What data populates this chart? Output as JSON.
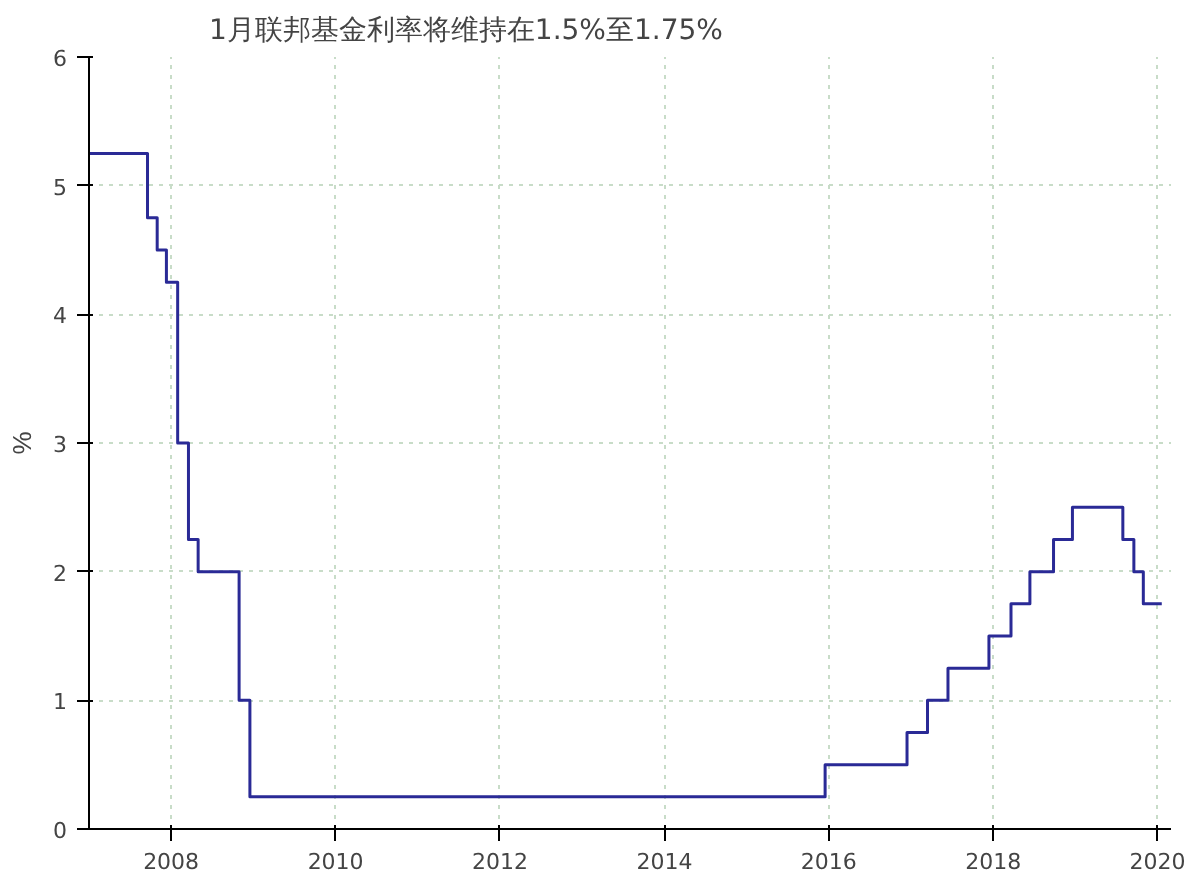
{
  "chart_data": {
    "type": "step",
    "title": "1月联邦基金利率将维持在1.5%至1.75%",
    "ylabel": "%",
    "x": [
      "2007-01-01",
      "2007-09-18",
      "2007-10-31",
      "2007-12-11",
      "2008-01-30",
      "2008-03-18",
      "2008-04-30",
      "2008-10-29",
      "2008-12-16",
      "2015-12-16",
      "2016-12-14",
      "2017-03-15",
      "2017-06-14",
      "2017-12-13",
      "2018-03-21",
      "2018-06-13",
      "2018-09-26",
      "2018-12-19",
      "2019-07-31",
      "2019-09-18",
      "2019-10-30",
      "2020-01-20"
    ],
    "series": [
      {
        "color": "#2a2a96",
        "values": [
          5.25,
          4.75,
          4.5,
          4.25,
          3.0,
          2.25,
          2.0,
          1.0,
          0.25,
          0.5,
          0.75,
          1.0,
          1.25,
          1.5,
          1.75,
          2.0,
          2.25,
          2.5,
          2.25,
          2.0,
          1.75,
          1.75
        ]
      }
    ],
    "xlim": [
      "2007-01-01",
      "2020-03-01"
    ],
    "xticks": [
      "2008",
      "2010",
      "2012",
      "2014",
      "2016",
      "2018",
      "2020"
    ],
    "ylim": [
      0,
      6
    ],
    "yticks": [
      0,
      1,
      2,
      3,
      4,
      5,
      6
    ],
    "grid": true,
    "line_style": "solid"
  }
}
